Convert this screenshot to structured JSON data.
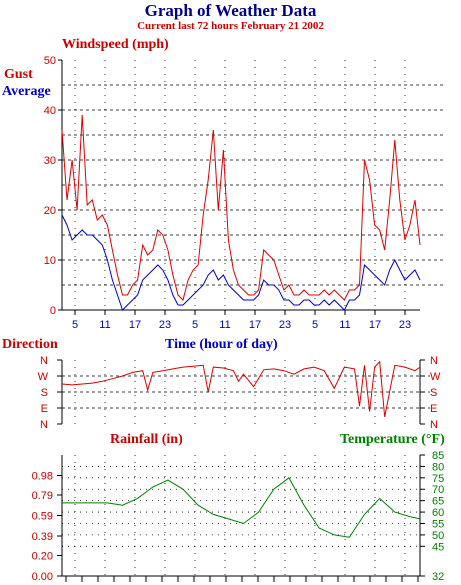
{
  "title": "Graph of Weather Data",
  "subtitle": "Current last 72 hours February 21 2002",
  "chart_data": [
    {
      "type": "line",
      "name": "wind",
      "ylabel": "Windspeed (mph)",
      "xlabel": "Time (hour of day)",
      "ylim": [
        0,
        50
      ],
      "yticks": [
        0,
        10,
        20,
        30,
        40,
        50
      ],
      "xticks": [
        "5",
        "11",
        "17",
        "23",
        "5",
        "11",
        "17",
        "23",
        "5",
        "11",
        "17",
        "23"
      ],
      "grid": true,
      "series": [
        {
          "name": "Gust",
          "color": "#dd0000",
          "x": [
            0,
            1,
            2,
            3,
            4,
            5,
            6,
            7,
            8,
            9,
            10,
            11,
            12,
            13,
            14,
            15,
            16,
            17,
            18,
            19,
            20,
            21,
            22,
            23,
            24,
            25,
            26,
            27,
            28,
            29,
            30,
            31,
            32,
            33,
            34,
            35,
            36,
            37,
            38,
            39,
            40,
            41,
            42,
            43,
            44,
            45,
            46,
            47,
            48,
            49,
            50,
            51,
            52,
            53,
            54,
            55,
            56,
            57,
            58,
            59,
            60,
            61,
            62,
            63,
            64,
            65,
            66,
            67,
            68,
            69,
            70,
            71
          ],
          "y": [
            36,
            22,
            30,
            20,
            39,
            21,
            22,
            18,
            19,
            17,
            12,
            7,
            3,
            3,
            5,
            6,
            13,
            11,
            12,
            16,
            15,
            12,
            7,
            3,
            2,
            6,
            8,
            9,
            19,
            26,
            36,
            20,
            32,
            14,
            8,
            5,
            4,
            3,
            3,
            4,
            12,
            11,
            10,
            7,
            4,
            5,
            3,
            3,
            4,
            3,
            3,
            3,
            4,
            3,
            4,
            3,
            2,
            4,
            4,
            5,
            30,
            26,
            17,
            16,
            12,
            22,
            34,
            22,
            14,
            17,
            22,
            13
          ]
        },
        {
          "name": "Average",
          "color": "#0000cc",
          "x": [
            0,
            1,
            2,
            3,
            4,
            5,
            6,
            7,
            8,
            9,
            10,
            11,
            12,
            13,
            14,
            15,
            16,
            17,
            18,
            19,
            20,
            21,
            22,
            23,
            24,
            25,
            26,
            27,
            28,
            29,
            30,
            31,
            32,
            33,
            34,
            35,
            36,
            37,
            38,
            39,
            40,
            41,
            42,
            43,
            44,
            45,
            46,
            47,
            48,
            49,
            50,
            51,
            52,
            53,
            54,
            55,
            56,
            57,
            58,
            59,
            60,
            61,
            62,
            63,
            64,
            65,
            66,
            67,
            68,
            69,
            70,
            71
          ],
          "y": [
            19,
            17,
            14,
            15,
            16,
            15,
            15,
            14,
            13,
            10,
            6,
            3,
            0,
            1,
            2,
            3,
            6,
            7,
            8,
            9,
            8,
            6,
            3,
            1,
            1,
            2,
            3,
            4,
            5,
            7,
            8,
            6,
            7,
            5,
            4,
            3,
            2,
            2,
            2,
            3,
            6,
            5,
            5,
            4,
            2,
            2,
            1,
            1,
            2,
            2,
            1,
            1,
            2,
            1,
            2,
            1,
            0,
            2,
            2,
            3,
            9,
            8,
            7,
            6,
            5,
            8,
            10,
            8,
            6,
            7,
            8,
            6
          ]
        }
      ]
    },
    {
      "type": "line",
      "name": "direction",
      "ylabel": "Direction",
      "ycategories": [
        "N",
        "E",
        "S",
        "W",
        "N"
      ],
      "grid": true,
      "series": [
        {
          "name": "Direction",
          "color": "#dd0000",
          "x": [
            0,
            2,
            4,
            6,
            8,
            10,
            12,
            14,
            16,
            17,
            18,
            20,
            22,
            24,
            26,
            28,
            29,
            30,
            32,
            34,
            35,
            36,
            38,
            40,
            42,
            44,
            46,
            48,
            50,
            52,
            54,
            56,
            58,
            59,
            60,
            61,
            62,
            63,
            64,
            66,
            68,
            70,
            71
          ],
          "y": [
            225,
            220,
            225,
            230,
            240,
            255,
            270,
            290,
            300,
            190,
            290,
            300,
            310,
            320,
            325,
            330,
            180,
            320,
            315,
            300,
            240,
            280,
            210,
            305,
            310,
            300,
            280,
            310,
            320,
            300,
            200,
            320,
            310,
            100,
            330,
            70,
            320,
            350,
            40,
            330,
            320,
            300,
            320
          ]
        }
      ]
    },
    {
      "type": "line",
      "name": "rain-temp",
      "ylabel": "Rainfall (in)",
      "y2label": "Temperature (°F)",
      "ylim": [
        0,
        1.18
      ],
      "yticks": [
        "0.00",
        "0.20",
        "0.39",
        "0.59",
        "0.79",
        "0.98"
      ],
      "y2lim": [
        32,
        85
      ],
      "y2ticks": [
        32,
        45,
        50,
        55,
        60,
        65,
        70,
        75,
        80,
        85
      ],
      "grid": true,
      "series": [
        {
          "name": "Temperature",
          "color": "#008000",
          "x": [
            0,
            3,
            6,
            9,
            12,
            15,
            18,
            21,
            24,
            27,
            30,
            33,
            36,
            39,
            42,
            45,
            48,
            51,
            54,
            57,
            60,
            63,
            66,
            69,
            71
          ],
          "y": [
            64,
            64,
            64,
            64,
            63,
            66,
            71,
            74,
            70,
            63,
            59,
            57,
            55,
            60,
            70,
            75,
            63,
            53,
            50,
            49,
            59,
            66,
            60,
            58,
            57
          ]
        }
      ]
    }
  ]
}
